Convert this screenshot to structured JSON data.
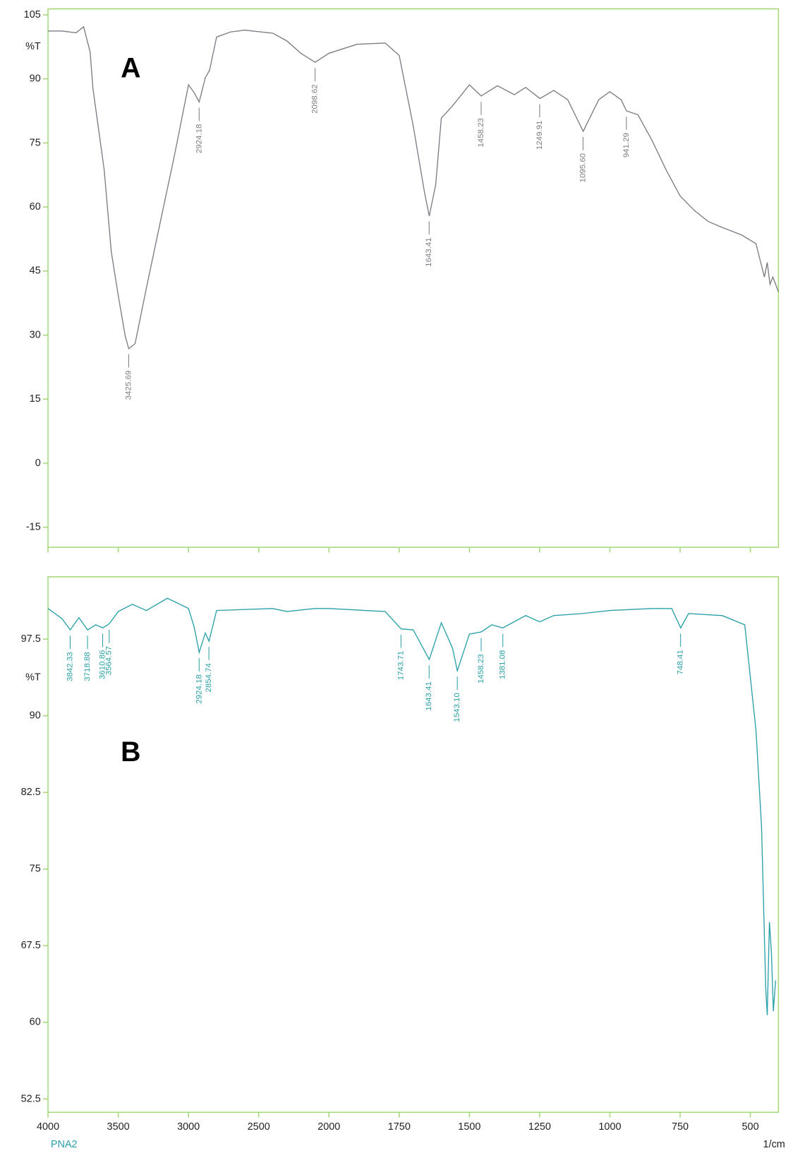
{
  "chart_data": [
    {
      "type": "line",
      "panel": "A",
      "ylabel": "%T",
      "xlim": [
        4000,
        400
      ],
      "x_scale_break": 2000,
      "ylim": [
        -19.7,
        106.4
      ],
      "yticks": [
        105,
        90,
        75,
        60,
        45,
        30,
        15,
        0,
        -15
      ],
      "x": [
        4000,
        3900,
        3800,
        3746,
        3700,
        3680,
        3600,
        3550,
        3500,
        3450,
        3425,
        3380,
        3300,
        3200,
        3100,
        3000,
        2960,
        2924,
        2880,
        2850,
        2800,
        2700,
        2600,
        2400,
        2300,
        2200,
        2098,
        2000,
        1900,
        1800,
        1750,
        1700,
        1660,
        1643,
        1620,
        1600,
        1560,
        1500,
        1458,
        1400,
        1340,
        1300,
        1249,
        1200,
        1150,
        1095,
        1040,
        1000,
        960,
        941,
        900,
        850,
        800,
        750,
        700,
        650,
        600,
        530,
        480,
        450,
        440,
        430,
        420,
        410,
        400
      ],
      "series": [
        {
          "color": "#7c7c84",
          "values": [
            101.2,
            101.2,
            100.8,
            102.2,
            96.3,
            87.7,
            68.7,
            49.6,
            39.3,
            29.7,
            26.8,
            28,
            41,
            56.6,
            72.1,
            88.6,
            86.8,
            84.6,
            90.3,
            92,
            99.8,
            101,
            101.4,
            100.7,
            98.9,
            96,
            93.9,
            96,
            98.1,
            98.4,
            95.5,
            79,
            63.5,
            57.9,
            65.2,
            80.8,
            83.7,
            88.6,
            86,
            88.4,
            86.3,
            88,
            85.4,
            87.3,
            85.1,
            77.7,
            85.1,
            87,
            85.1,
            82.5,
            81.6,
            75.6,
            68.7,
            62.6,
            59.2,
            56.6,
            55.2,
            53.4,
            51.4,
            43.6,
            47,
            41.9,
            43.6,
            41.9,
            40.1
          ]
        }
      ],
      "peaks": [
        3425.69,
        2924.18,
        2098.62,
        1643.41,
        1458.23,
        1249.91,
        {
          "value": 1095.6,
          "label": "1095.60"
        },
        941.29
      ]
    },
    {
      "type": "line",
      "panel": "B",
      "ylabel": "%T",
      "xlabel": "1/cm",
      "xlim": [
        4000,
        400
      ],
      "x_scale_break": 2000,
      "xticks": [
        4000,
        3500,
        3000,
        2500,
        2000,
        1750,
        1500,
        1250,
        1000,
        750,
        500
      ],
      "ylim": [
        51.2,
        103.6
      ],
      "yticks": [
        97.5,
        90,
        82.5,
        75,
        67.5,
        60,
        52.5
      ],
      "x": [
        4000,
        3900,
        3842,
        3780,
        3718,
        3660,
        3610,
        3564,
        3500,
        3400,
        3300,
        3150,
        3000,
        2960,
        2924,
        2880,
        2854,
        2800,
        2400,
        2300,
        2100,
        2000,
        1800,
        1743,
        1700,
        1643,
        1600,
        1560,
        1543,
        1500,
        1458,
        1420,
        1381,
        1300,
        1250,
        1200,
        1100,
        1000,
        850,
        780,
        748,
        720,
        600,
        520,
        480,
        460,
        445,
        440,
        432,
        425,
        418,
        410
      ],
      "series": [
        {
          "name": "PNA2",
          "color": "#2aa0a8",
          "values": [
            100.5,
            99.5,
            98.4,
            99.6,
            98.4,
            98.9,
            98.6,
            99,
            100.2,
            100.9,
            100.3,
            101.5,
            100.5,
            98.7,
            96.2,
            98.1,
            97.3,
            100.3,
            100.5,
            100.2,
            100.5,
            100.5,
            100.2,
            98.5,
            98.4,
            95.5,
            99.1,
            96.6,
            94.4,
            98,
            98.2,
            98.9,
            98.6,
            99.8,
            99.2,
            99.8,
            100,
            100.3,
            100.5,
            100.5,
            98.6,
            100,
            99.8,
            98.9,
            88.6,
            79.1,
            63.2,
            60.7,
            69.8,
            66.9,
            61.1,
            64.1
          ]
        }
      ],
      "peaks": [
        3842.33,
        3718.88,
        3610.86,
        3564.57,
        2924.18,
        2854.74,
        1743.71,
        1643.41,
        {
          "value": 1543.1,
          "label": "1543.10"
        },
        1458.23,
        1381.08,
        748.41
      ]
    }
  ]
}
